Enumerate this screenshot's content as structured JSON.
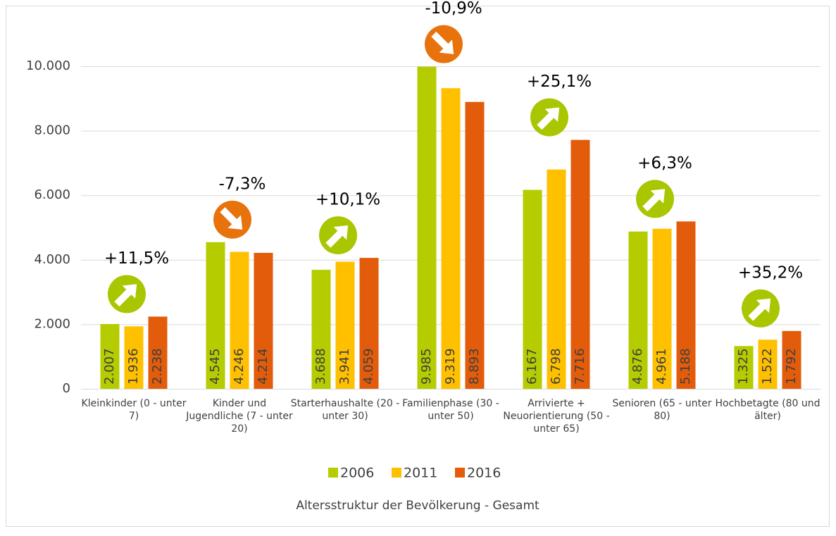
{
  "chart_data": {
    "type": "bar",
    "title": "Altersstruktur der Bevölkerung - Gesamt",
    "categories": [
      "Kleinkinder (0 - unter 7)",
      "Kinder und Jugendliche (7 - unter 20)",
      "Starterhaushalte (20 - unter 30)",
      "Familienphase (30 - unter 50)",
      "Arrivierte + Neuorientierung (50 - unter 65)",
      "Senioren (65 - unter 80)",
      "Hochbetagte (80 und älter)"
    ],
    "series": [
      {
        "name": "2006",
        "color": "#b4cc00",
        "values": [
          2007,
          4545,
          3688,
          9985,
          6167,
          4876,
          1325
        ],
        "value_labels": [
          "2.007",
          "4.545",
          "3.688",
          "9.985",
          "6.167",
          "4.876",
          "1.325"
        ]
      },
      {
        "name": "2011",
        "color": "#ffc000",
        "values": [
          1936,
          4246,
          3941,
          9319,
          6798,
          4961,
          1522
        ],
        "value_labels": [
          "1.936",
          "4.246",
          "3.941",
          "9.319",
          "6.798",
          "4.961",
          "1.522"
        ]
      },
      {
        "name": "2016",
        "color": "#e35c0b",
        "values": [
          2238,
          4214,
          4059,
          8893,
          7716,
          5188,
          1792
        ],
        "value_labels": [
          "2.238",
          "4.214",
          "4.059",
          "8.893",
          "7.716",
          "5.188",
          "1.792"
        ]
      }
    ],
    "changes": [
      "+11,5%",
      "-7,3%",
      "+10,1%",
      "-10,9%",
      "+25,1%",
      "+6,3%",
      "+35,2%"
    ],
    "ylim": [
      0,
      10000
    ],
    "yticks": [
      0,
      {
        "value": 2000,
        "label": "2.000"
      },
      {
        "value": 4000,
        "label": "4.000"
      },
      {
        "value": 6000,
        "label": "6.000"
      },
      {
        "value": 8000,
        "label": "8.000"
      },
      {
        "value": 10000,
        "label": "10.000"
      }
    ],
    "grid": true,
    "legend": "bottom"
  }
}
